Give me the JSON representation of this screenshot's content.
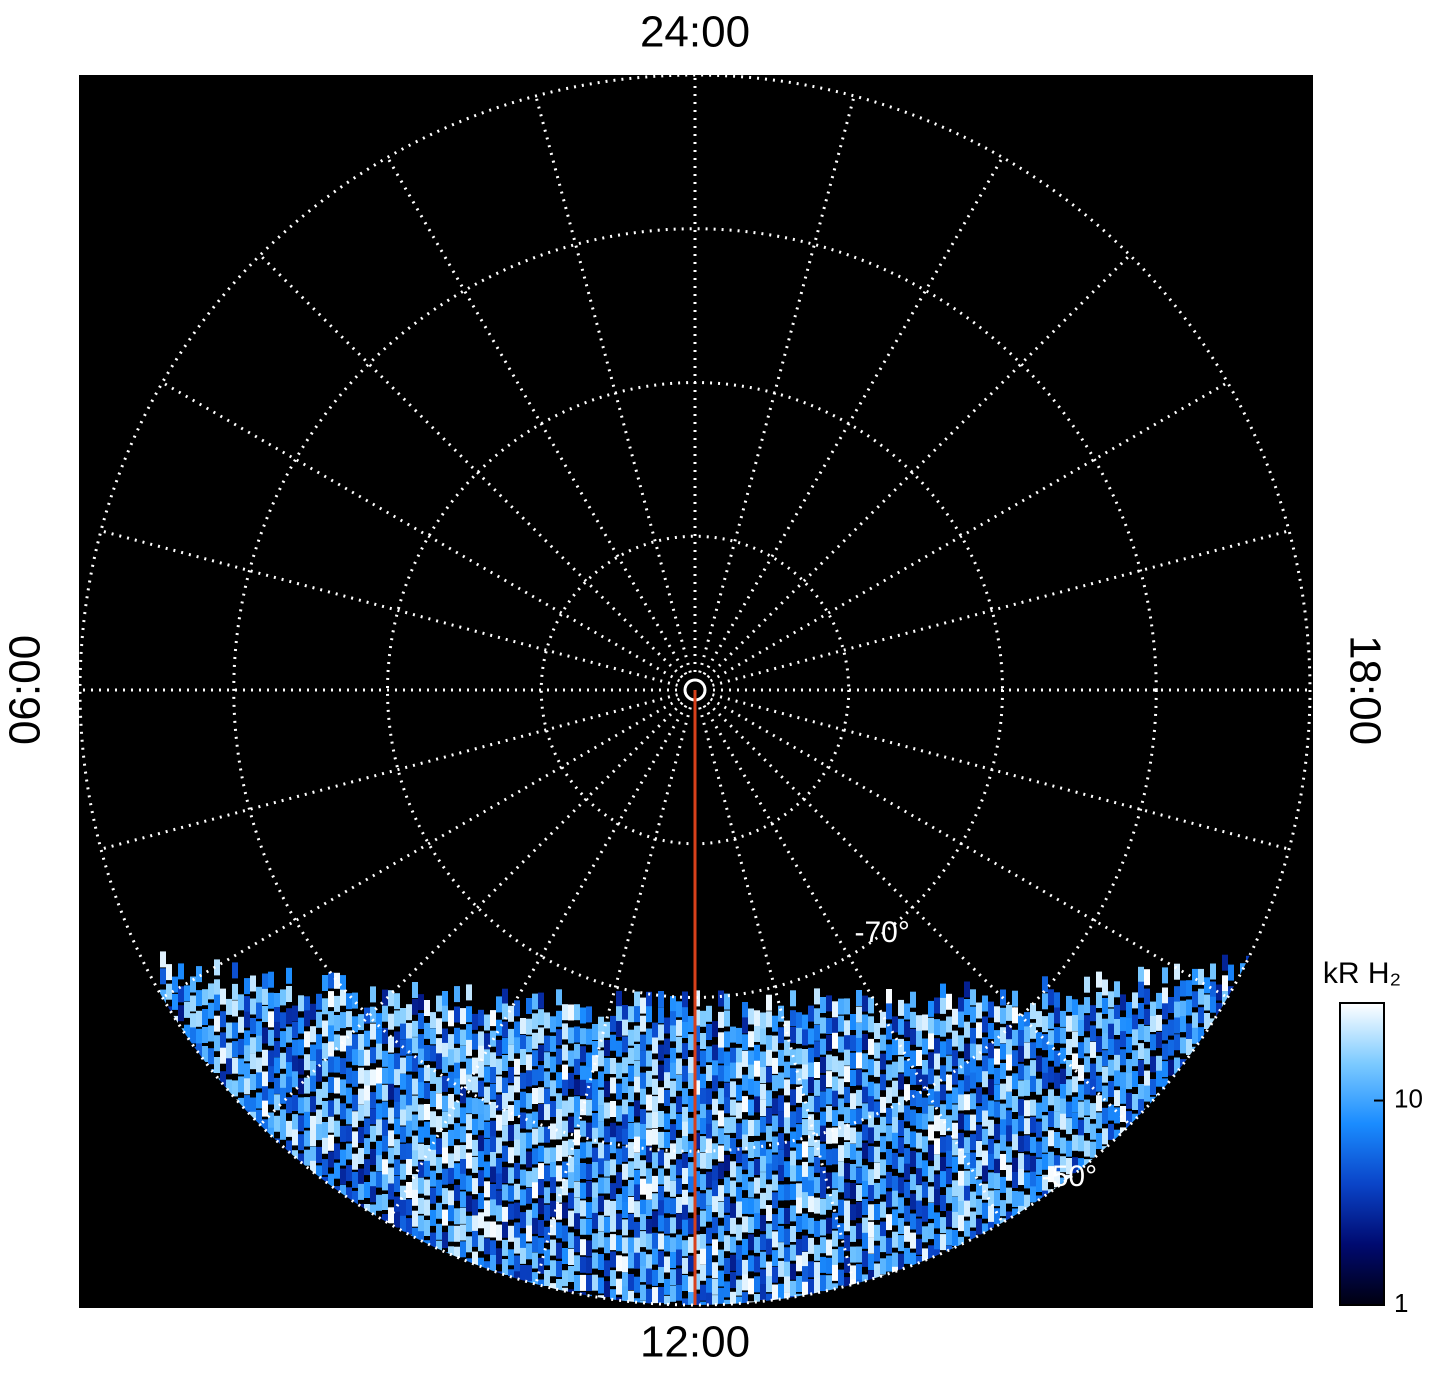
{
  "chart_data": {
    "type": "polar",
    "hour_labels": [
      {
        "value": 24,
        "label": "24:00"
      },
      {
        "value": 6,
        "label": "06:00"
      },
      {
        "value": 18,
        "label": "18:00"
      },
      {
        "value": 12,
        "label": "12:00"
      }
    ],
    "rlim": [
      -90,
      -50
    ],
    "rgrid": [
      -80,
      -70,
      -60,
      -50
    ],
    "rlabels": [
      {
        "value": -70,
        "label": "-70°"
      },
      {
        "value": -50,
        "label": "-50°"
      }
    ],
    "meridians": 24,
    "grid_color": "#ffffff",
    "marker_line": {
      "hour": 12,
      "color": "#d8401a"
    },
    "colorbar": {
      "label": "kR H₂",
      "log": true,
      "lim": [
        1,
        30
      ],
      "ticks": [
        1,
        10
      ],
      "colors": [
        "#000010",
        "#000a70",
        "#0a44c8",
        "#1a8cff",
        "#7ccaff",
        "#ffffff"
      ]
    }
  }
}
